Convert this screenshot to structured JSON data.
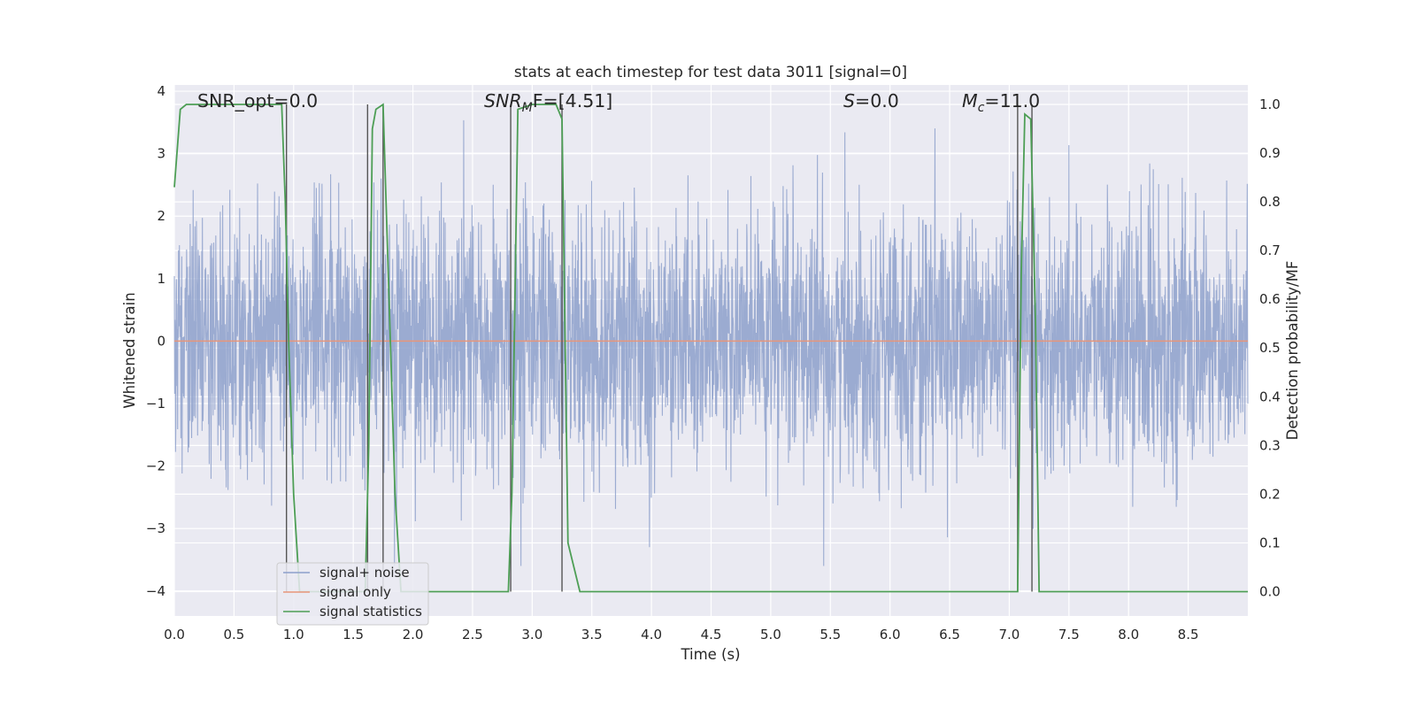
{
  "chart_data": {
    "type": "line",
    "title": "stats at each timestep for test data 3011 [signal=0]",
    "xlabel": "Time (s)",
    "ylabel": "Whitened strain",
    "y2label": "Detection probability/MF",
    "xlim": [
      0.0,
      9.0
    ],
    "ylim": [
      -4.4,
      4.1
    ],
    "y2lim": [
      -0.05,
      1.04
    ],
    "xticks": [
      "0.0",
      "0.5",
      "1.0",
      "1.5",
      "2.0",
      "2.5",
      "3.0",
      "3.5",
      "4.0",
      "4.5",
      "5.0",
      "5.5",
      "6.0",
      "6.5",
      "7.0",
      "7.5",
      "8.0",
      "8.5"
    ],
    "yticks": [
      "4",
      "3",
      "2",
      "1",
      "0",
      "−1",
      "−2",
      "−3",
      "−4"
    ],
    "y2ticks": [
      "1.0",
      "0.9",
      "0.8",
      "0.7",
      "0.6",
      "0.5",
      "0.4",
      "0.3",
      "0.2",
      "0.1",
      "0.0"
    ],
    "grid": true,
    "legend_placement": "lower-left",
    "annotations": [
      {
        "prefix": "SNR_opt=0.0",
        "italic": "",
        "sub": "",
        "value": ""
      },
      {
        "prefix": "",
        "italic": "SNR",
        "sub": "M",
        "value": "F=[4.51]"
      },
      {
        "prefix": "",
        "italic": "S",
        "sub": "",
        "value": "=0.0"
      },
      {
        "prefix": "",
        "italic": "M",
        "sub": "c",
        "value": "=11.0"
      }
    ],
    "series": [
      {
        "name": "signal+ noise",
        "axis": "left",
        "color": "#8da0cb",
        "note": "dense whitened noise, approx. range -3.6 to 3.7",
        "envelope": {
          "core": [
            -1.7,
            1.4
          ],
          "peak": [
            -3.6,
            3.7
          ]
        }
      },
      {
        "name": "signal only",
        "axis": "left",
        "color": "#e8967a",
        "x": [
          0.0,
          9.0
        ],
        "y": [
          0.0,
          0.0
        ]
      },
      {
        "name": "signal statistics",
        "axis": "right",
        "color": "#4d9e55",
        "x": [
          0.0,
          0.05,
          0.1,
          0.2,
          0.5,
          0.9,
          0.93,
          0.96,
          1.0,
          1.05,
          1.6,
          1.63,
          1.66,
          1.69,
          1.75,
          1.8,
          1.85,
          1.9,
          2.7,
          2.8,
          2.83,
          2.88,
          3.0,
          3.2,
          3.25,
          3.3,
          3.4,
          4.0,
          7.0,
          7.07,
          7.1,
          7.13,
          7.18,
          7.22,
          7.25,
          9.0
        ],
        "y": [
          0.83,
          0.99,
          1.0,
          1.0,
          1.0,
          1.0,
          0.8,
          0.5,
          0.2,
          0.0,
          0.0,
          0.3,
          0.95,
          0.99,
          1.0,
          0.6,
          0.2,
          0.0,
          0.0,
          0.0,
          0.2,
          0.99,
          1.0,
          1.0,
          0.97,
          0.1,
          0.0,
          0.0,
          0.0,
          0.0,
          0.65,
          0.98,
          0.97,
          0.55,
          0.0,
          0.0
        ]
      }
    ],
    "vertical_markers": [
      0.94,
      1.62,
      1.75,
      2.82,
      3.25,
      7.07,
      7.19
    ]
  }
}
